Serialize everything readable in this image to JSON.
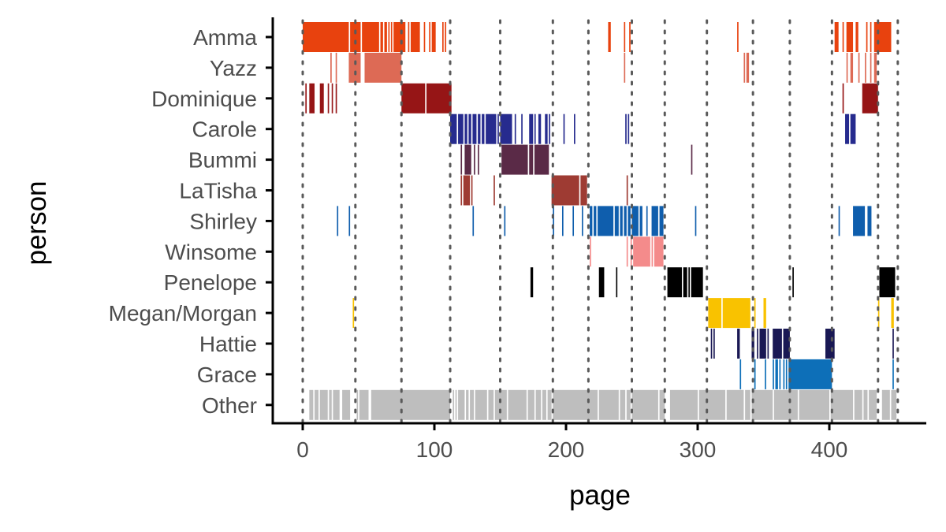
{
  "chart_data": {
    "type": "timeline",
    "xlabel": "page",
    "ylabel": "person",
    "xlim": [
      -2,
      475
    ],
    "x_ticks": [
      0,
      100,
      200,
      300,
      400
    ],
    "vlines": [
      0,
      40,
      75,
      112,
      150,
      190,
      217,
      250,
      275,
      307,
      342,
      370,
      402,
      437,
      452
    ],
    "grid": false,
    "legend": "none",
    "series": [
      {
        "name": "Amma",
        "color": "#e8420e",
        "segments": [
          [
            0,
            35
          ],
          [
            36,
            44
          ],
          [
            45,
            58
          ],
          [
            59,
            61
          ],
          [
            62,
            64
          ],
          [
            65,
            66
          ],
          [
            67,
            68
          ],
          [
            69,
            78
          ],
          [
            80,
            81
          ],
          [
            82,
            89
          ],
          [
            92,
            93
          ],
          [
            96,
            97
          ],
          [
            98,
            101
          ],
          [
            106,
            107
          ],
          [
            108,
            109
          ],
          [
            232,
            234
          ],
          [
            244,
            245
          ],
          [
            248,
            249
          ],
          [
            330,
            331
          ],
          [
            404,
            407
          ],
          [
            410,
            411
          ],
          [
            413,
            418
          ],
          [
            420,
            422
          ],
          [
            428,
            429
          ],
          [
            431,
            432
          ],
          [
            434,
            447
          ]
        ]
      },
      {
        "name": "Yazz",
        "color": "#dd6a55",
        "segments": [
          [
            21,
            22
          ],
          [
            25,
            26
          ],
          [
            35,
            44
          ],
          [
            47,
            75
          ],
          [
            244,
            245
          ],
          [
            335,
            336
          ],
          [
            337,
            339
          ],
          [
            413,
            414
          ],
          [
            416,
            418
          ],
          [
            422,
            423
          ],
          [
            427,
            428
          ],
          [
            431,
            432
          ],
          [
            434,
            436
          ]
        ]
      },
      {
        "name": "Dominique",
        "color": "#961516",
        "segments": [
          [
            2,
            3
          ],
          [
            5,
            9
          ],
          [
            13,
            16
          ],
          [
            19,
            20
          ],
          [
            22,
            23
          ],
          [
            25,
            26
          ],
          [
            75,
            93
          ],
          [
            94,
            113
          ],
          [
            410,
            411
          ],
          [
            425,
            437
          ]
        ]
      },
      {
        "name": "Carole",
        "color": "#262b8e",
        "segments": [
          [
            112,
            117
          ],
          [
            118,
            122
          ],
          [
            123,
            125
          ],
          [
            126,
            128
          ],
          [
            129,
            132
          ],
          [
            133,
            135
          ],
          [
            136,
            138
          ],
          [
            139,
            147
          ],
          [
            148,
            149
          ],
          [
            150,
            159
          ],
          [
            161,
            162
          ],
          [
            166,
            167
          ],
          [
            172,
            175
          ],
          [
            176,
            177
          ],
          [
            179,
            181
          ],
          [
            184,
            186
          ],
          [
            187,
            188
          ],
          [
            198,
            199
          ],
          [
            206,
            207
          ],
          [
            245,
            246
          ],
          [
            247,
            248
          ],
          [
            412,
            415
          ],
          [
            416,
            420
          ]
        ]
      },
      {
        "name": "Bummi",
        "color": "#5a2a47",
        "segments": [
          [
            120,
            121
          ],
          [
            123,
            128
          ],
          [
            130,
            131
          ],
          [
            133,
            134
          ],
          [
            151,
            171
          ],
          [
            172,
            175
          ],
          [
            176,
            187
          ],
          [
            295,
            296
          ]
        ]
      },
      {
        "name": "LaTisha",
        "color": "#9e3b33",
        "segments": [
          [
            120,
            121
          ],
          [
            122,
            127
          ],
          [
            128,
            129
          ],
          [
            145,
            146
          ],
          [
            189,
            210
          ],
          [
            211,
            216
          ],
          [
            246,
            247
          ]
        ]
      },
      {
        "name": "Shirley",
        "color": "#0f5ead",
        "segments": [
          [
            26,
            27
          ],
          [
            35,
            36
          ],
          [
            129,
            130
          ],
          [
            153,
            154
          ],
          [
            190,
            191
          ],
          [
            197,
            198
          ],
          [
            205,
            206
          ],
          [
            212,
            213
          ],
          [
            218,
            220
          ],
          [
            221,
            223
          ],
          [
            224,
            236
          ],
          [
            237,
            240
          ],
          [
            241,
            243
          ],
          [
            244,
            246
          ],
          [
            247,
            249
          ],
          [
            250,
            255
          ],
          [
            256,
            258
          ],
          [
            261,
            262
          ],
          [
            265,
            270
          ],
          [
            271,
            274
          ],
          [
            298,
            299
          ],
          [
            407,
            408
          ],
          [
            418,
            427
          ],
          [
            429,
            432
          ]
        ]
      },
      {
        "name": "Winsome",
        "color": "#f48b8b",
        "segments": [
          [
            218,
            219
          ],
          [
            246,
            247
          ],
          [
            249,
            250
          ],
          [
            251,
            264
          ],
          [
            265,
            266
          ],
          [
            267,
            274
          ]
        ]
      },
      {
        "name": "Penelope",
        "color": "#000000",
        "segments": [
          [
            173,
            175
          ],
          [
            225,
            229
          ],
          [
            238,
            239
          ],
          [
            277,
            288
          ],
          [
            289,
            292
          ],
          [
            293,
            294
          ],
          [
            295,
            304
          ],
          [
            372,
            373
          ],
          [
            438,
            450
          ]
        ]
      },
      {
        "name": "Megan/Morgan",
        "color": "#f9c200",
        "segments": [
          [
            38,
            39
          ],
          [
            308,
            318
          ],
          [
            319,
            340
          ],
          [
            343,
            344
          ],
          [
            350,
            352
          ],
          [
            437,
            438
          ],
          [
            447,
            449
          ]
        ]
      },
      {
        "name": "Hattie",
        "color": "#191854",
        "segments": [
          [
            310,
            311
          ],
          [
            312,
            313
          ],
          [
            330,
            332
          ],
          [
            341,
            343
          ],
          [
            345,
            346
          ],
          [
            347,
            352
          ],
          [
            353,
            354
          ],
          [
            357,
            364
          ],
          [
            365,
            370
          ],
          [
            397,
            404
          ],
          [
            448,
            449
          ]
        ]
      },
      {
        "name": "Grace",
        "color": "#0d6fb8",
        "segments": [
          [
            332,
            333
          ],
          [
            343,
            344
          ],
          [
            351,
            352
          ],
          [
            357,
            358
          ],
          [
            359,
            361
          ],
          [
            362,
            363
          ],
          [
            365,
            366
          ],
          [
            367,
            368
          ],
          [
            369,
            402
          ],
          [
            448,
            449
          ]
        ]
      },
      {
        "name": "Other",
        "color": "#bebebe",
        "segments": [
          [
            5,
            8
          ],
          [
            9,
            12
          ],
          [
            13,
            19
          ],
          [
            20,
            22
          ],
          [
            23,
            28
          ],
          [
            30,
            36
          ],
          [
            41,
            42
          ],
          [
            43,
            50
          ],
          [
            52,
            112
          ],
          [
            114,
            115
          ],
          [
            116,
            117
          ],
          [
            118,
            123
          ],
          [
            124,
            126
          ],
          [
            127,
            130
          ],
          [
            131,
            140
          ],
          [
            141,
            145
          ],
          [
            146,
            155
          ],
          [
            156,
            170
          ],
          [
            171,
            176
          ],
          [
            177,
            181
          ],
          [
            182,
            185
          ],
          [
            186,
            189
          ],
          [
            190,
            224
          ],
          [
            225,
            240
          ],
          [
            241,
            245
          ],
          [
            246,
            249
          ],
          [
            250,
            270
          ],
          [
            271,
            275
          ],
          [
            279,
            300
          ],
          [
            301,
            321
          ],
          [
            322,
            335
          ],
          [
            336,
            340
          ],
          [
            341,
            357
          ],
          [
            358,
            376
          ],
          [
            377,
            400
          ],
          [
            401,
            418
          ],
          [
            419,
            425
          ],
          [
            426,
            429
          ],
          [
            430,
            436
          ],
          [
            440,
            446
          ],
          [
            447,
            451
          ]
        ]
      }
    ]
  }
}
